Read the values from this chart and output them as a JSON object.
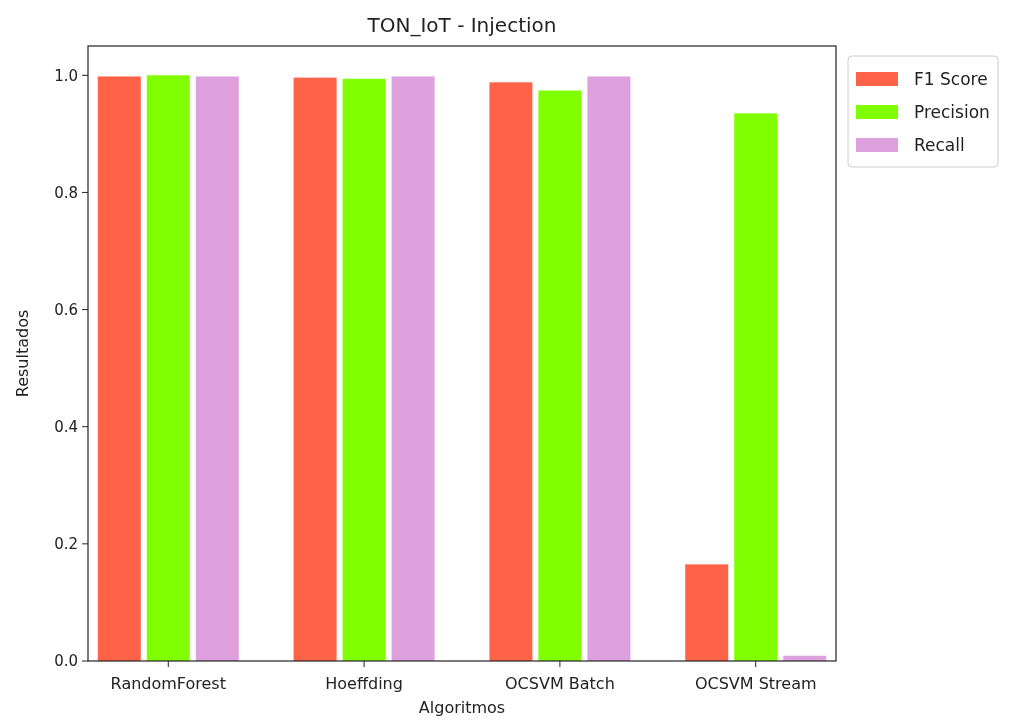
{
  "chart_data": {
    "type": "bar",
    "title": "TON_IoT - Injection",
    "xlabel": "Algoritmos",
    "ylabel": "Resultados",
    "categories": [
      "RandomForest",
      "Hoeffding",
      "OCSVM Batch",
      "OCSVM Stream"
    ],
    "series": [
      {
        "name": "F1 Score",
        "color": "#ff6347",
        "values": [
          0.998,
          0.996,
          0.988,
          0.165
        ]
      },
      {
        "name": "Precision",
        "color": "#7fff00",
        "values": [
          1.0,
          0.994,
          0.974,
          0.935
        ]
      },
      {
        "name": "Recall",
        "color": "#dda0dd",
        "values": [
          0.998,
          0.998,
          0.998,
          0.009
        ]
      }
    ],
    "ylim": [
      0,
      1.05
    ],
    "yticks": [
      {
        "value": 0,
        "label": "0.0"
      },
      {
        "value": 0.2,
        "label": "0.2"
      },
      {
        "value": 0.4,
        "label": "0.4"
      },
      {
        "value": 0.6,
        "label": "0.6"
      },
      {
        "value": 0.8,
        "label": "0.8"
      },
      {
        "value": 1.0,
        "label": "1.0"
      }
    ],
    "legend": "top right"
  }
}
